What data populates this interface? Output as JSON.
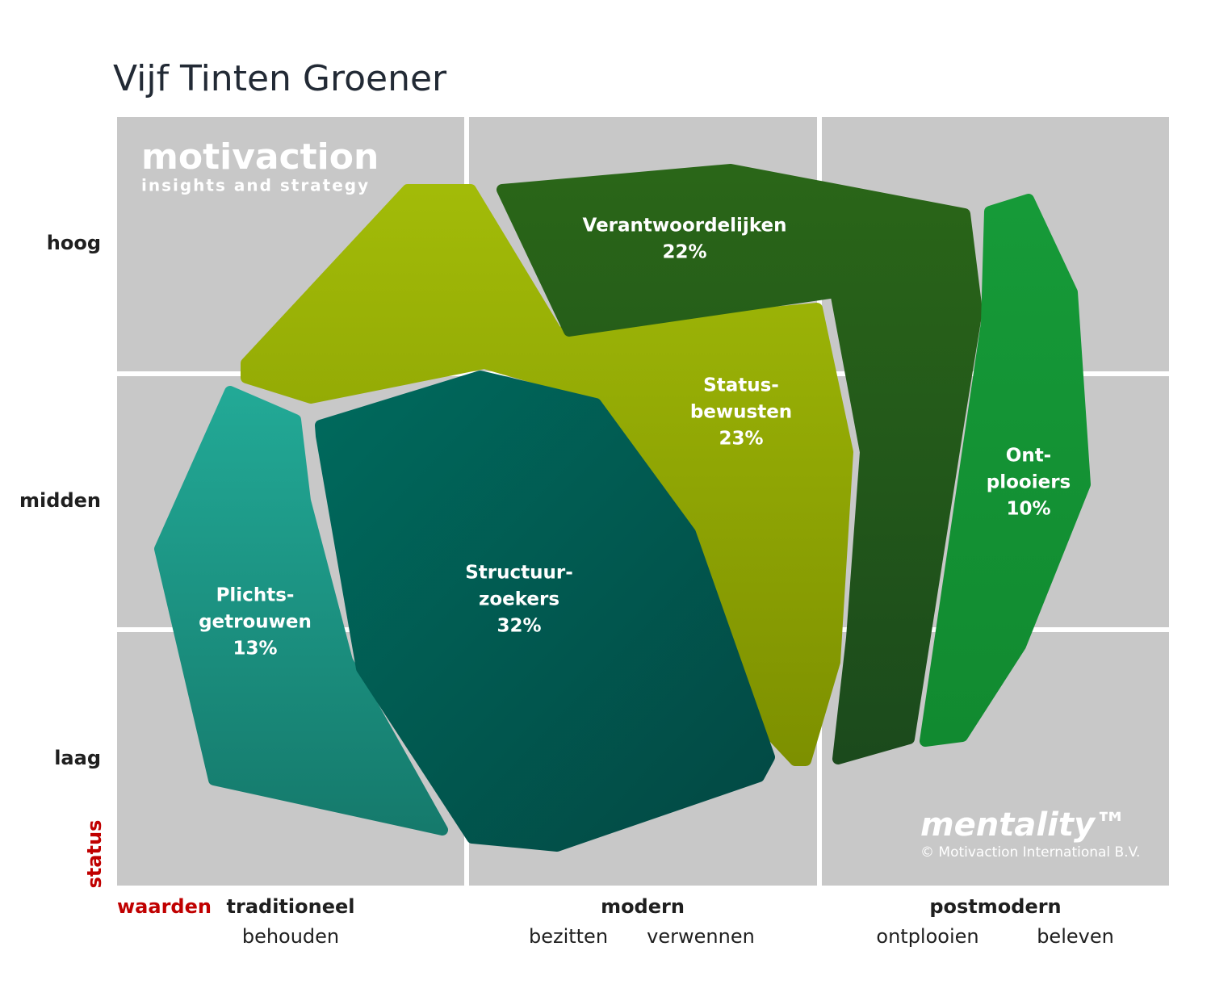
{
  "header": {
    "title": "Vijf Tinten Groener"
  },
  "logo": {
    "name": "motivaction",
    "tagline": "insights and strategy"
  },
  "brand": {
    "name": "mentality™",
    "copyright": "© Motivaction International B.V."
  },
  "y_axis": {
    "title": "status",
    "levels": [
      "hoog",
      "midden",
      "laag"
    ]
  },
  "x_axis": {
    "title": "waarden",
    "groups": [
      {
        "label": "traditioneel",
        "subs": [
          "behouden"
        ]
      },
      {
        "label": "modern",
        "subs": [
          "bezitten",
          "verwennen"
        ]
      },
      {
        "label": "postmodern",
        "subs": [
          "ontplooien",
          "beleven"
        ]
      }
    ]
  },
  "segments": [
    {
      "lines": [
        "Verantwoordelijken"
      ],
      "share": "22%"
    },
    {
      "lines": [
        "Status-",
        "bewusten"
      ],
      "share": "23%"
    },
    {
      "lines": [
        "Ont-",
        "plooiers"
      ],
      "share": "10%"
    },
    {
      "lines": [
        "Structuur-",
        "zoekers"
      ],
      "share": "32%"
    },
    {
      "lines": [
        "Plichts-",
        "getrouwen"
      ],
      "share": "13%"
    }
  ]
}
